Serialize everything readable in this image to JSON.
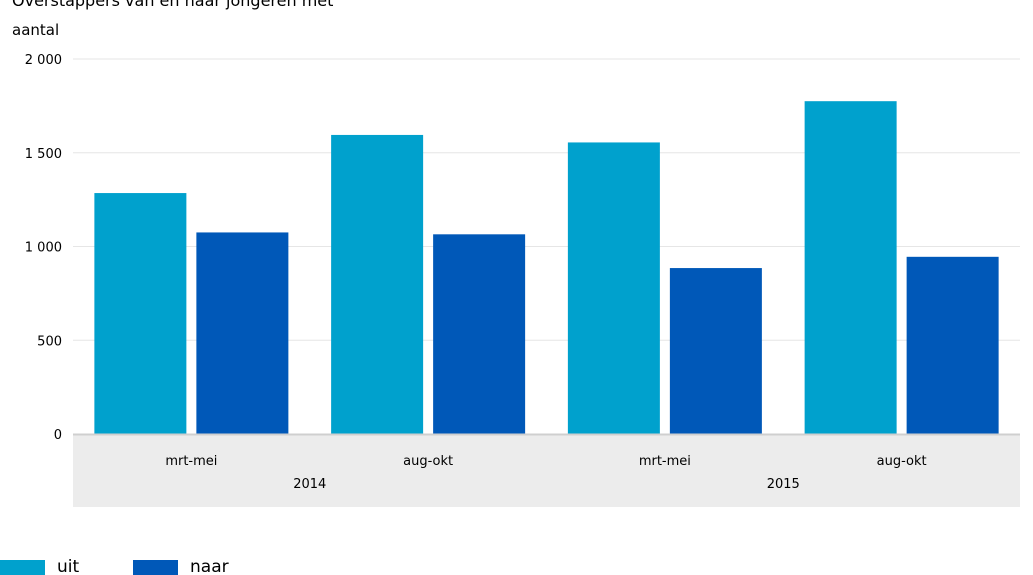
{
  "header": {
    "title_fragment": "Overstappers van en naar jongeren met"
  },
  "chart_data": {
    "type": "bar",
    "ylabel": "aantal",
    "ylim": [
      0,
      2000
    ],
    "yticks": [
      0,
      500,
      1000,
      1500,
      2000
    ],
    "ytick_labels": [
      "0",
      "500",
      "1 000",
      "1 500",
      "2 000"
    ],
    "grid": true,
    "categories": [
      "mrt-mei",
      "aug-okt",
      "mrt-mei",
      "aug-okt"
    ],
    "groups": [
      {
        "label": "2014",
        "categories": [
          "mrt-mei",
          "aug-okt"
        ]
      },
      {
        "label": "2015",
        "categories": [
          "mrt-mei",
          "aug-okt"
        ]
      }
    ],
    "series": [
      {
        "name": "uit",
        "color": "#00a1cd",
        "values": [
          1285,
          1595,
          1555,
          1775
        ]
      },
      {
        "name": "naar",
        "color": "#0058b8",
        "values": [
          1075,
          1065,
          885,
          945
        ]
      }
    ],
    "legend_position": "bottom-left",
    "colors": {
      "grid": "#e6e6e6",
      "axis": "#cfcfcf",
      "category_band": "#ececec",
      "text": "#000000"
    }
  }
}
